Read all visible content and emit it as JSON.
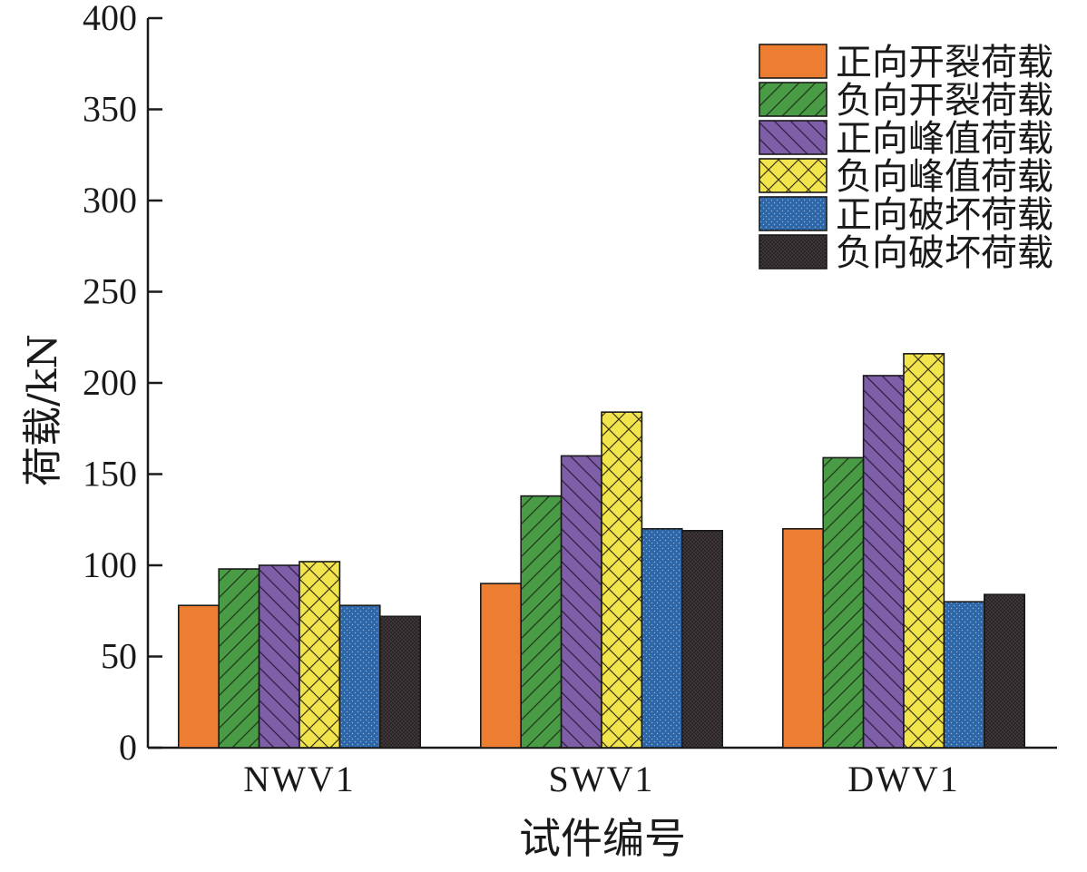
{
  "chart_data": {
    "type": "bar",
    "title": "",
    "xlabel": "试件编号",
    "ylabel": "荷载/kN",
    "ylim": [
      0,
      400
    ],
    "yticks": [
      0,
      50,
      100,
      150,
      200,
      250,
      300,
      350,
      400
    ],
    "categories": [
      "NWV1",
      "SWV1",
      "DWV1"
    ],
    "grid": false,
    "legend_position": "top-right",
    "series": [
      {
        "name": "正向开裂荷载",
        "values": [
          78,
          90,
          120
        ],
        "color": "#ed7d31",
        "pattern": "solid"
      },
      {
        "name": "负向开裂荷载",
        "values": [
          98,
          138,
          159
        ],
        "color": "#4a9b45",
        "pattern": "forward-diagonal"
      },
      {
        "name": "正向峰值荷载",
        "values": [
          100,
          160,
          204
        ],
        "color": "#7d5ea7",
        "pattern": "back-diagonal"
      },
      {
        "name": "负向峰值荷载",
        "values": [
          102,
          184,
          216
        ],
        "color": "#f2e44c",
        "pattern": "cross-hatch"
      },
      {
        "name": "正向破坏荷载",
        "values": [
          78,
          120,
          80
        ],
        "color": "#2e67a8",
        "pattern": "dots"
      },
      {
        "name": "负向破坏荷载",
        "values": [
          72,
          119,
          84
        ],
        "color": "#2b2528",
        "pattern": "dense-dots"
      }
    ]
  }
}
